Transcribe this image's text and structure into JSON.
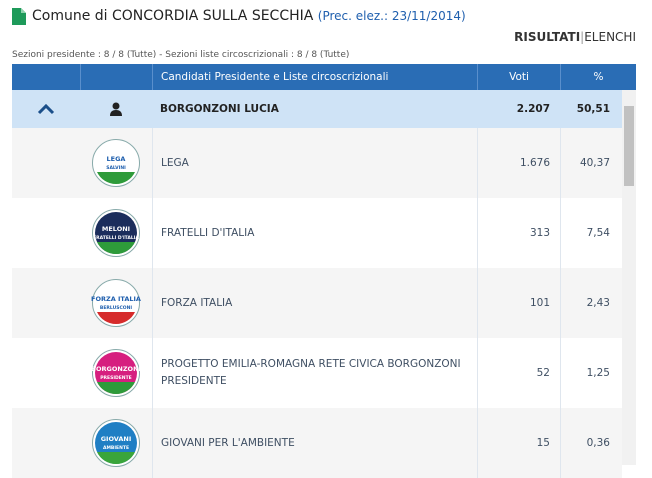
{
  "header": {
    "title": "Comune di CONCORDIA SULLA SECCHIA",
    "previous": "(Prec. elez.: 23/11/2014)",
    "tabs": [
      "RISULTATI",
      "ELENCHI"
    ],
    "sections": "Sezioni presidente : 8 / 8 (Tutte) - Sezioni liste circoscrizionali : 8 / 8 (Tutte)"
  },
  "table": {
    "columns": [
      "Candidati Presidente e Liste circoscrizionali",
      "Voti",
      "%"
    ],
    "candidate": {
      "name": "BORGONZONI LUCIA",
      "votes": "2.207",
      "percent": "50,51"
    },
    "lists": [
      {
        "name": "LEGA",
        "votes": "1.676",
        "percent": "40,37",
        "logo": [
          "LEGA",
          "SALVINI"
        ],
        "colors": [
          "#ffffff",
          "#1f5fae",
          "#2e9b3a"
        ]
      },
      {
        "name": "FRATELLI D'ITALIA",
        "votes": "313",
        "percent": "7,54",
        "logo": [
          "MELONI",
          "FRATELLI D'ITALIA"
        ],
        "colors": [
          "#1b2d5c",
          "#ffffff",
          "#2e9b3a"
        ]
      },
      {
        "name": "FORZA ITALIA",
        "votes": "101",
        "percent": "2,43",
        "logo": [
          "FORZA ITALIA",
          "BERLUSCONI"
        ],
        "colors": [
          "#ffffff",
          "#1f5fae",
          "#d62b2b"
        ]
      },
      {
        "name": "PROGETTO EMILIA-ROMAGNA RETE CIVICA BORGONZONI PRESIDENTE",
        "votes": "52",
        "percent": "1,25",
        "logo": [
          "BORGONZONI",
          "PRESIDENTE"
        ],
        "colors": [
          "#d61f7f",
          "#ffffff",
          "#2e9b3a"
        ]
      },
      {
        "name": "GIOVANI PER L'AMBIENTE",
        "votes": "15",
        "percent": "0,36",
        "logo": [
          "GIOVANI",
          "AMBIENTE"
        ],
        "colors": [
          "#1f7fc4",
          "#ffffff",
          "#3aa53a"
        ]
      }
    ]
  }
}
